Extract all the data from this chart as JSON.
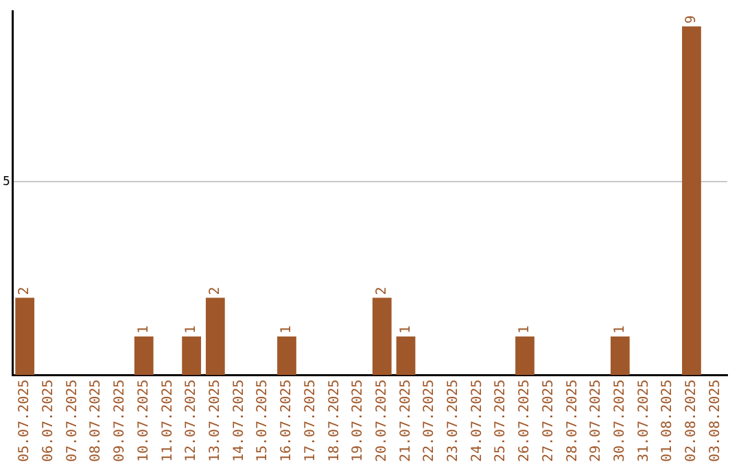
{
  "chart_data": {
    "type": "bar",
    "categories": [
      "05.07.2025",
      "06.07.2025",
      "07.07.2025",
      "08.07.2025",
      "09.07.2025",
      "10.07.2025",
      "11.07.2025",
      "12.07.2025",
      "13.07.2025",
      "14.07.2025",
      "15.07.2025",
      "16.07.2025",
      "17.07.2025",
      "18.07.2025",
      "19.07.2025",
      "20.07.2025",
      "21.07.2025",
      "22.07.2025",
      "23.07.2025",
      "24.07.2025",
      "25.07.2025",
      "26.07.2025",
      "27.07.2025",
      "28.07.2025",
      "29.07.2025",
      "30.07.2025",
      "31.07.2025",
      "01.08.2025",
      "02.08.2025",
      "03.08.2025"
    ],
    "values": [
      2,
      0,
      0,
      0,
      0,
      1,
      0,
      1,
      2,
      0,
      0,
      1,
      0,
      0,
      0,
      2,
      1,
      0,
      0,
      0,
      0,
      1,
      0,
      0,
      0,
      1,
      0,
      0,
      9,
      0
    ],
    "value_labels": [
      "2",
      null,
      null,
      null,
      null,
      "1",
      null,
      "1",
      "2",
      null,
      null,
      "1",
      null,
      null,
      null,
      "2",
      "1",
      null,
      null,
      null,
      null,
      "1",
      null,
      null,
      null,
      "1",
      null,
      null,
      "9",
      null
    ],
    "color": "#a0582a",
    "ylim": [
      0,
      9.4
    ],
    "yticks": [
      5
    ],
    "grid": "y",
    "legend": false
  }
}
